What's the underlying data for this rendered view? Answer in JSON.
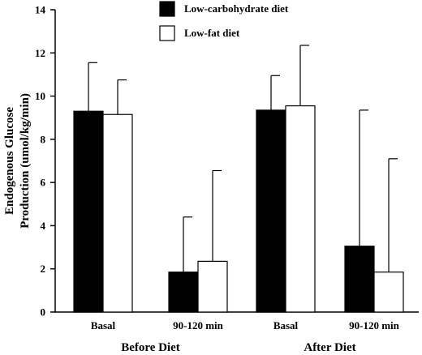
{
  "chart_data": {
    "type": "bar",
    "title": "",
    "ylabel": "Endogenous Glucose Production (umol/kg/min)",
    "ylabel_lines": [
      "Endogenous Glucose",
      "Production (umol/kg/min)"
    ],
    "ylim": [
      0,
      14
    ],
    "yticks": [
      0,
      2,
      4,
      6,
      8,
      10,
      12,
      14
    ],
    "categories": [
      "Basal",
      "90-120 min",
      "Basal",
      "90-120 min"
    ],
    "groups": [
      {
        "label": "Before Diet",
        "categories": [
          "Basal",
          "90-120 min"
        ]
      },
      {
        "label": "After Diet",
        "categories": [
          "Basal",
          "90-120 min"
        ]
      }
    ],
    "series": [
      {
        "name": "Low-carbohydrate diet",
        "color": "#000000",
        "values": [
          9.3,
          1.85,
          9.35,
          3.05
        ],
        "errors": [
          2.25,
          2.55,
          1.6,
          6.3
        ]
      },
      {
        "name": "Low-fat diet",
        "color": "#ffffff",
        "values": [
          9.15,
          2.35,
          9.55,
          1.85
        ],
        "errors": [
          1.6,
          4.2,
          2.8,
          5.25
        ]
      }
    ],
    "grid": false,
    "legend_position": "top-center"
  }
}
